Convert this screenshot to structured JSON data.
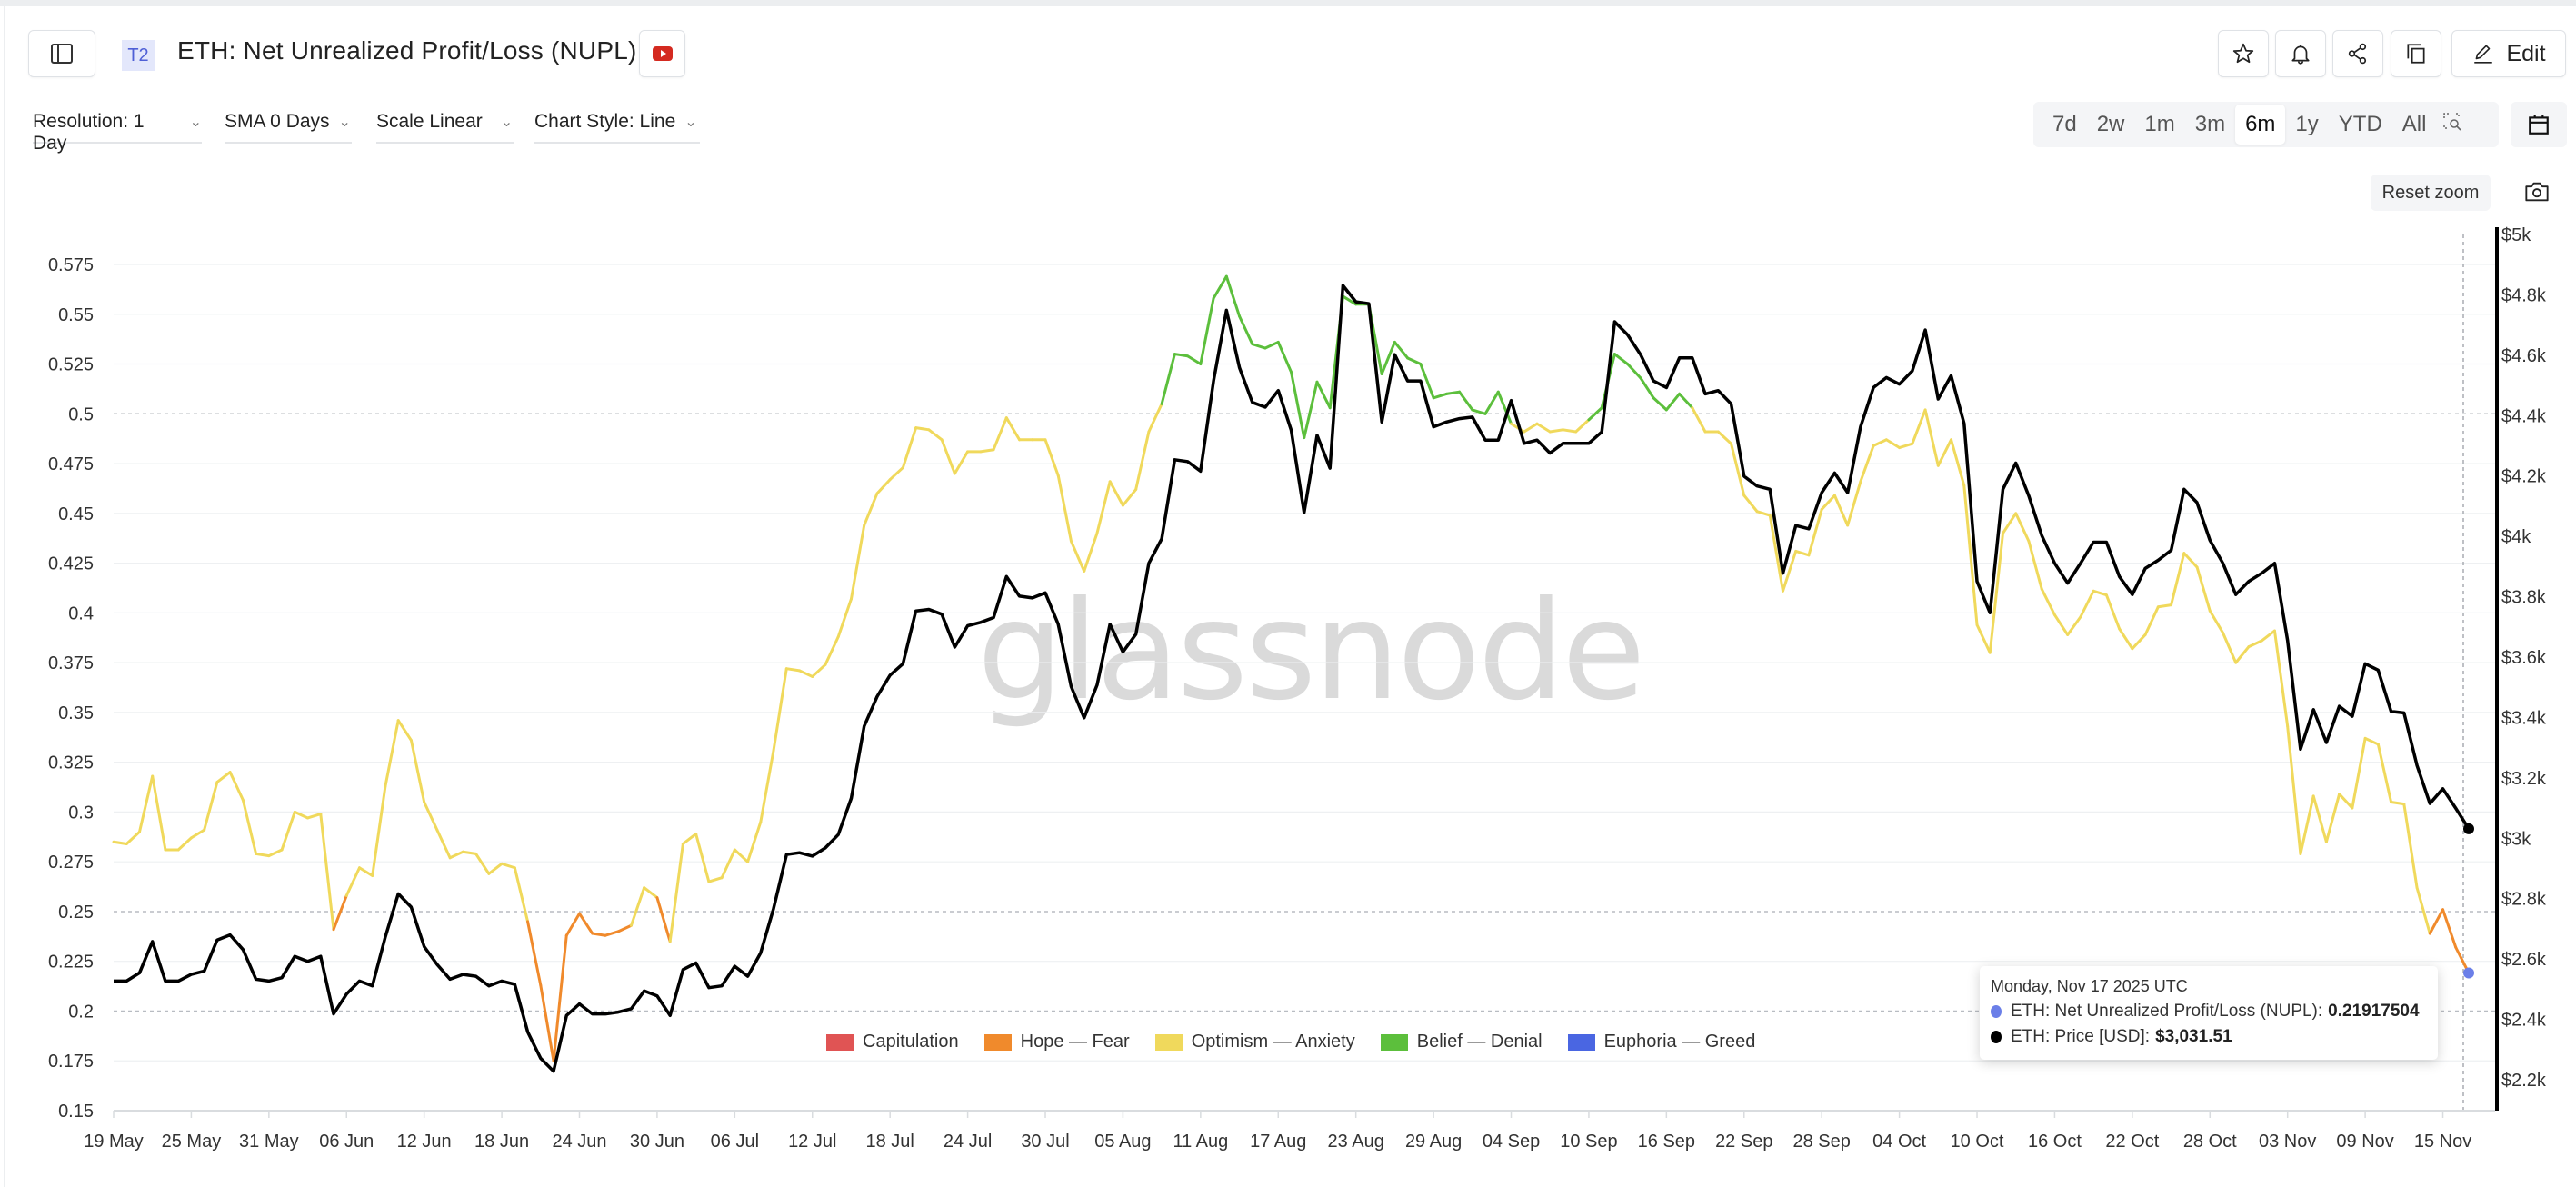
{
  "header": {
    "badge": "T2",
    "title": "ETH: Net Unrealized Profit/Loss (NUPL)",
    "edit_label": "Edit",
    "icons": [
      "sidebar-toggle-icon",
      "youtube-icon",
      "star-icon",
      "bell-icon",
      "share-icon",
      "copy-icon",
      "pencil-icon"
    ]
  },
  "toolbar": {
    "resolution": "Resolution: 1 Day",
    "sma": "SMA 0 Days",
    "scale": "Scale Linear",
    "chart_style": "Chart Style: Line",
    "ranges": [
      "7d",
      "2w",
      "1m",
      "3m",
      "6m",
      "1y",
      "YTD",
      "All"
    ],
    "active_range": "6m",
    "reset_zoom": "Reset zoom"
  },
  "watermark": "glassnode",
  "tooltip": {
    "date": "Monday, Nov 17 2025 UTC",
    "nupl_label": "ETH: Net Unrealized Profit/Loss (NUPL):",
    "nupl_value": "0.21917504",
    "price_label": "ETH: Price [USD]:",
    "price_value": "$3,031.51",
    "nupl_color": "#6b7fe8",
    "price_color": "#000000"
  },
  "chart_data": {
    "type": "line",
    "x_start": "2025-05-19",
    "x_end": "2025-11-17",
    "x_tick_labels": [
      "19 May",
      "25 May",
      "31 May",
      "06 Jun",
      "12 Jun",
      "18 Jun",
      "24 Jun",
      "30 Jun",
      "06 Jul",
      "12 Jul",
      "18 Jul",
      "24 Jul",
      "30 Jul",
      "05 Aug",
      "11 Aug",
      "17 Aug",
      "23 Aug",
      "29 Aug",
      "04 Sep",
      "10 Sep",
      "16 Sep",
      "22 Sep",
      "28 Sep",
      "04 Oct",
      "10 Oct",
      "16 Oct",
      "22 Oct",
      "28 Oct",
      "03 Nov",
      "09 Nov",
      "15 Nov"
    ],
    "y_left": {
      "range": [
        0.15,
        0.575
      ],
      "ticks": [
        "0.575",
        "0.55",
        "0.525",
        "0.5",
        "0.475",
        "0.45",
        "0.425",
        "0.4",
        "0.375",
        "0.35",
        "0.325",
        "0.3",
        "0.275",
        "0.25",
        "0.225",
        "0.2",
        "0.175",
        "0.15"
      ]
    },
    "y_right": {
      "range": [
        2100,
        5000
      ],
      "ticks": [
        "$5k",
        "$4.8k",
        "$4.6k",
        "$4.4k",
        "$4.2k",
        "$4k",
        "$3.8k",
        "$3.6k",
        "$3.4k",
        "$3.2k",
        "$3k",
        "$2.8k",
        "$2.6k",
        "$2.4k",
        "$2.2k"
      ]
    },
    "grid": true,
    "legend_position": "bottom-center",
    "zones": [
      {
        "name": "Capitulation",
        "color": "#e05454",
        "min": -1,
        "max": 0
      },
      {
        "name": "Hope — Fear",
        "color": "#f08a2c",
        "min": 0,
        "max": 0.25
      },
      {
        "name": "Optimism — Anxiety",
        "color": "#f0d95c",
        "min": 0.25,
        "max": 0.5
      },
      {
        "name": "Belief — Denial",
        "color": "#5cbf3c",
        "min": 0.5,
        "max": 0.75
      },
      {
        "name": "Euphoria — Greed",
        "color": "#4a66e2",
        "min": 0.75,
        "max": 1
      }
    ],
    "series": [
      {
        "name": "ETH: Net Unrealized Profit/Loss (NUPL)",
        "axis": "left",
        "values": [
          0.285,
          0.284,
          0.29,
          0.318,
          0.281,
          0.281,
          0.287,
          0.291,
          0.315,
          0.32,
          0.306,
          0.279,
          0.278,
          0.281,
          0.3,
          0.297,
          0.299,
          0.241,
          0.258,
          0.272,
          0.268,
          0.313,
          0.346,
          0.336,
          0.305,
          0.291,
          0.277,
          0.28,
          0.279,
          0.269,
          0.274,
          0.272,
          0.245,
          0.213,
          0.175,
          0.238,
          0.249,
          0.239,
          0.238,
          0.24,
          0.243,
          0.262,
          0.257,
          0.235,
          0.284,
          0.289,
          0.265,
          0.267,
          0.281,
          0.275,
          0.295,
          0.331,
          0.372,
          0.371,
          0.368,
          0.374,
          0.388,
          0.407,
          0.444,
          0.46,
          0.467,
          0.473,
          0.493,
          0.492,
          0.487,
          0.47,
          0.481,
          0.481,
          0.482,
          0.498,
          0.487,
          0.487,
          0.487,
          0.469,
          0.436,
          0.421,
          0.44,
          0.466,
          0.454,
          0.462,
          0.491,
          0.505,
          0.53,
          0.529,
          0.525,
          0.558,
          0.569,
          0.549,
          0.535,
          0.533,
          0.536,
          0.521,
          0.488,
          0.516,
          0.503,
          0.559,
          0.555,
          0.555,
          0.52,
          0.536,
          0.528,
          0.525,
          0.508,
          0.51,
          0.511,
          0.502,
          0.5,
          0.511,
          0.495,
          0.491,
          0.495,
          0.491,
          0.492,
          0.491,
          0.497,
          0.503,
          0.53,
          0.525,
          0.518,
          0.508,
          0.502,
          0.51,
          0.503,
          0.491,
          0.491,
          0.485,
          0.459,
          0.451,
          0.449,
          0.411,
          0.431,
          0.429,
          0.452,
          0.459,
          0.444,
          0.466,
          0.484,
          0.487,
          0.483,
          0.485,
          0.502,
          0.474,
          0.487,
          0.464,
          0.394,
          0.38,
          0.44,
          0.45,
          0.436,
          0.412,
          0.399,
          0.389,
          0.398,
          0.411,
          0.409,
          0.392,
          0.382,
          0.389,
          0.403,
          0.404,
          0.43,
          0.423,
          0.401,
          0.39,
          0.375,
          0.383,
          0.386,
          0.391,
          0.343,
          0.279,
          0.308,
          0.285,
          0.309,
          0.302,
          0.337,
          0.334,
          0.305,
          0.304,
          0.262,
          0.239,
          0.251,
          0.232,
          0.21917504
        ]
      },
      {
        "name": "ETH: Price [USD]",
        "axis": "right",
        "color": "#000000",
        "values": [
          2527,
          2527,
          2554,
          2658,
          2527,
          2527,
          2549,
          2560,
          2663,
          2680,
          2631,
          2533,
          2527,
          2538,
          2609,
          2592,
          2609,
          2418,
          2484,
          2527,
          2511,
          2674,
          2816,
          2772,
          2641,
          2582,
          2533,
          2549,
          2543,
          2511,
          2527,
          2516,
          2358,
          2271,
          2228,
          2413,
          2451,
          2418,
          2418,
          2424,
          2435,
          2494,
          2478,
          2413,
          2565,
          2587,
          2505,
          2511,
          2576,
          2543,
          2620,
          2767,
          2946,
          2952,
          2941,
          2968,
          3012,
          3132,
          3371,
          3469,
          3540,
          3578,
          3753,
          3758,
          3742,
          3633,
          3704,
          3715,
          3731,
          3867,
          3802,
          3796,
          3813,
          3709,
          3502,
          3399,
          3508,
          3709,
          3617,
          3676,
          3911,
          3992,
          4254,
          4248,
          4216,
          4515,
          4749,
          4559,
          4444,
          4428,
          4483,
          4352,
          4079,
          4335,
          4226,
          4831,
          4777,
          4771,
          4379,
          4602,
          4515,
          4515,
          4363,
          4379,
          4390,
          4395,
          4319,
          4319,
          4450,
          4308,
          4319,
          4276,
          4308,
          4308,
          4308,
          4346,
          4711,
          4668,
          4602,
          4515,
          4493,
          4591,
          4591,
          4472,
          4483,
          4439,
          4199,
          4167,
          4156,
          3878,
          4036,
          4025,
          4145,
          4210,
          4145,
          4363,
          4493,
          4526,
          4504,
          4548,
          4684,
          4455,
          4532,
          4374,
          3851,
          3747,
          4156,
          4243,
          4134,
          4003,
          3911,
          3845,
          3911,
          3981,
          3981,
          3867,
          3807,
          3894,
          3921,
          3954,
          4156,
          4112,
          3987,
          3911,
          3807,
          3851,
          3878,
          3911,
          3655,
          3295,
          3426,
          3317,
          3437,
          3404,
          3578,
          3557,
          3420,
          3415,
          3241,
          3115,
          3164,
          3099,
          3031.51
        ]
      }
    ]
  }
}
